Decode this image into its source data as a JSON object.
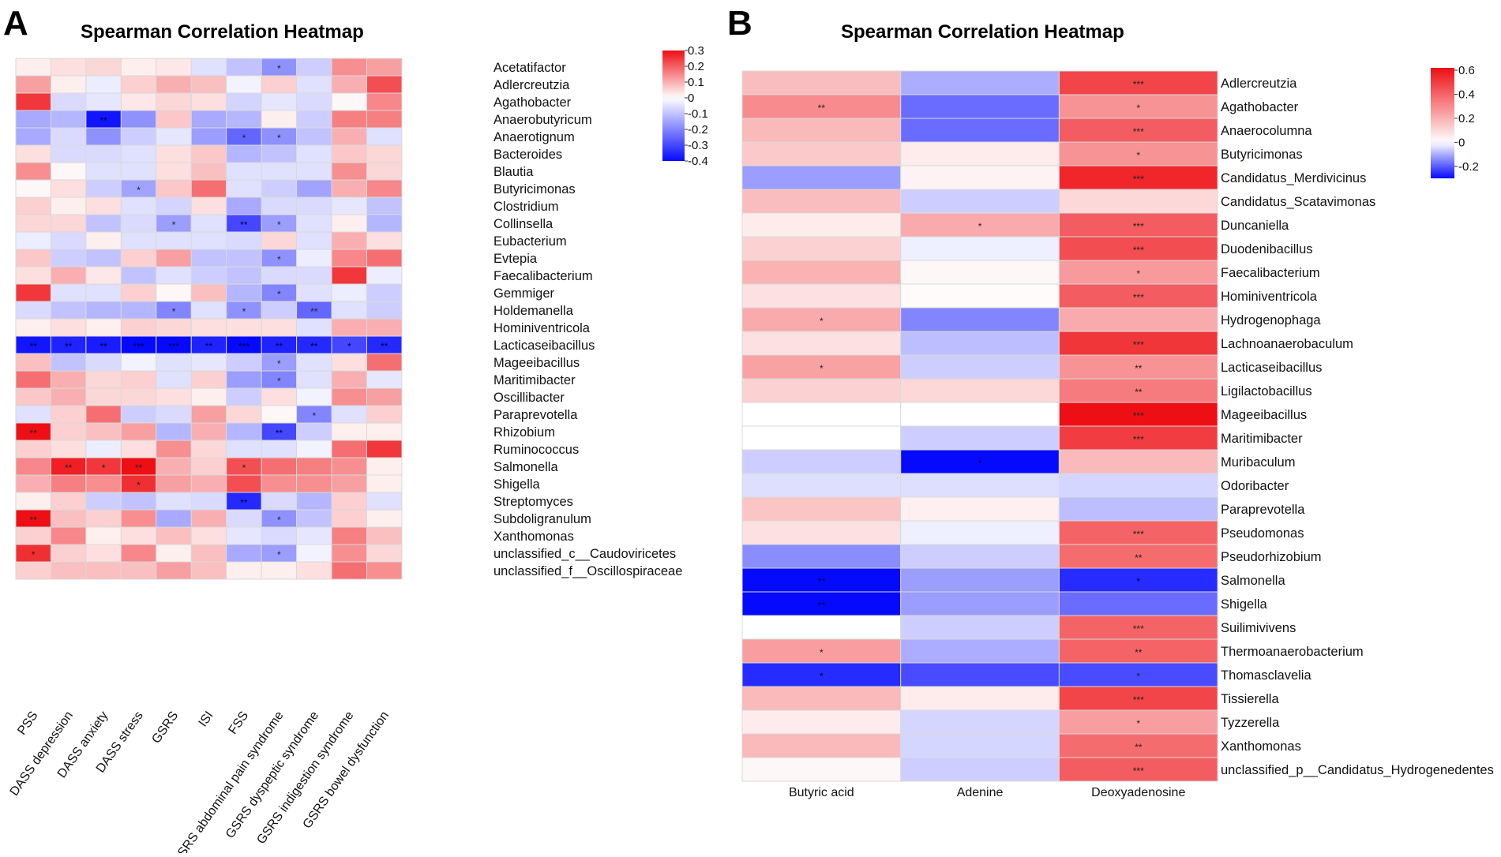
{
  "panels": [
    {
      "label": "A",
      "title": "Spearman Correlation Heatmap",
      "columns": [
        "PSS",
        "DASS depression",
        "DASS anxiety",
        "DASS stress",
        "GSRS",
        "ISI",
        "FSS",
        "GSRS abdominal pain syndrome",
        "GSRS dyspeptic syndrome",
        "GSRS indigestion syndrome",
        "GSRS bowel dysfunction"
      ],
      "rows": [
        "Acetatifactor",
        "Adlercreutzia",
        "Agathobacter",
        "Anaerobutyricum",
        "Anaerotignum",
        "Bacteroides",
        "Blautia",
        "Butyricimonas",
        "Clostridium",
        "Collinsella",
        "Eubacterium",
        "Evtepia",
        "Faecalibacterium",
        "Gemmiger",
        "Holdemanella",
        "Hominiventricola",
        "Lacticaseibacillus",
        "Mageeibacillus",
        "Maritimibacter",
        "Oscillibacter",
        "Paraprevotella",
        "Rhizobium",
        "Ruminococcus",
        "Salmonella",
        "Shigella",
        "Streptomyces",
        "Subdoligranulum",
        "Xanthomonas",
        "unclassified_c__Caudoviricetes",
        "unclassified_f__Oscillospiraceae"
      ],
      "color_scale": {
        "min": -0.4,
        "max": 0.3,
        "ticks": [
          0.3,
          0.2,
          0.1,
          0,
          -0.1,
          -0.2,
          -0.3,
          -0.4
        ],
        "tick_labels": [
          "0.3",
          "0.2",
          "0.1",
          "0",
          "-0.1",
          "-0.2",
          "-0.3",
          "-0.4"
        ]
      },
      "values": [
        [
          0.02,
          0.04,
          0.05,
          0.02,
          0.03,
          -0.05,
          -0.1,
          -0.18,
          -0.08,
          0.14,
          0.12
        ],
        [
          0.12,
          0.02,
          -0.03,
          0.06,
          0.1,
          0.08,
          -0.02,
          0.06,
          -0.05,
          0.1,
          0.22
        ],
        [
          0.25,
          -0.06,
          -0.04,
          0.03,
          0.05,
          0.04,
          -0.07,
          -0.04,
          -0.06,
          0.01,
          0.15
        ],
        [
          -0.14,
          -0.12,
          -0.38,
          -0.18,
          0.07,
          -0.14,
          -0.12,
          0.02,
          -0.08,
          0.16,
          0.16
        ],
        [
          -0.14,
          -0.06,
          -0.18,
          -0.08,
          -0.04,
          -0.16,
          -0.25,
          -0.18,
          -0.1,
          0.1,
          -0.05
        ],
        [
          0.04,
          -0.06,
          -0.06,
          -0.05,
          0.04,
          0.07,
          -0.12,
          -0.1,
          -0.05,
          0.07,
          0.05
        ],
        [
          0.14,
          0.01,
          -0.05,
          -0.05,
          0.04,
          0.08,
          -0.05,
          -0.05,
          -0.05,
          0.14,
          0.05
        ],
        [
          0.01,
          0.04,
          -0.08,
          -0.15,
          0.07,
          0.18,
          -0.05,
          -0.08,
          -0.15,
          0.1,
          0.15
        ],
        [
          0.06,
          0.02,
          0.04,
          -0.05,
          -0.07,
          0.04,
          -0.14,
          -0.06,
          -0.06,
          -0.04,
          -0.1
        ],
        [
          0.05,
          0.05,
          -0.1,
          -0.06,
          -0.16,
          -0.05,
          -0.3,
          -0.16,
          -0.05,
          0.02,
          -0.12
        ],
        [
          -0.03,
          -0.06,
          0.02,
          -0.05,
          -0.05,
          -0.05,
          -0.06,
          0.05,
          -0.05,
          0.1,
          0.04
        ],
        [
          0.07,
          -0.08,
          -0.1,
          0.06,
          0.12,
          -0.1,
          -0.1,
          -0.18,
          -0.03,
          0.15,
          0.18
        ],
        [
          0.04,
          0.1,
          0.03,
          -0.1,
          -0.05,
          -0.08,
          -0.1,
          -0.06,
          -0.06,
          0.25,
          -0.03
        ],
        [
          0.25,
          -0.05,
          -0.05,
          0.06,
          0.01,
          0.08,
          -0.12,
          -0.2,
          -0.05,
          -0.03,
          -0.08
        ],
        [
          -0.06,
          -0.1,
          -0.12,
          -0.12,
          -0.2,
          -0.05,
          -0.18,
          -0.08,
          -0.25,
          -0.05,
          -0.08
        ],
        [
          0.02,
          0.04,
          0.02,
          0.06,
          0.05,
          0.04,
          0.04,
          0.04,
          -0.05,
          0.1,
          0.1
        ],
        [
          -0.38,
          -0.36,
          -0.37,
          -0.4,
          -0.4,
          -0.36,
          -0.4,
          -0.36,
          -0.35,
          -0.3,
          -0.35
        ],
        [
          0.08,
          -0.1,
          -0.06,
          -0.02,
          -0.05,
          -0.04,
          -0.08,
          -0.16,
          -0.05,
          0.04,
          0.18
        ],
        [
          0.18,
          0.1,
          0.05,
          0.06,
          -0.05,
          0.06,
          -0.16,
          -0.2,
          -0.05,
          0.1,
          -0.04
        ],
        [
          0.07,
          0.1,
          0.05,
          0.05,
          0.04,
          0.02,
          -0.08,
          0.04,
          -0.02,
          0.14,
          0.12
        ],
        [
          -0.05,
          0.06,
          0.18,
          -0.08,
          -0.06,
          0.12,
          0.05,
          0.01,
          -0.2,
          -0.05,
          0.06
        ],
        [
          0.32,
          0.06,
          0.08,
          0.12,
          -0.12,
          0.1,
          -0.12,
          -0.3,
          -0.08,
          0.02,
          0.02
        ],
        [
          0.06,
          0.04,
          -0.03,
          0.04,
          0.14,
          0.05,
          -0.05,
          -0.05,
          -0.02,
          0.18,
          0.25
        ],
        [
          0.15,
          0.28,
          0.25,
          0.3,
          0.1,
          0.06,
          0.22,
          0.18,
          0.16,
          0.14,
          0.02
        ],
        [
          0.1,
          0.16,
          0.14,
          0.26,
          0.12,
          0.1,
          0.22,
          0.14,
          0.14,
          0.12,
          0.02
        ],
        [
          0.02,
          0.06,
          -0.08,
          -0.1,
          -0.05,
          -0.06,
          -0.35,
          -0.06,
          -0.12,
          0.06,
          -0.05
        ],
        [
          0.3,
          0.08,
          0.06,
          0.14,
          -0.14,
          0.1,
          -0.06,
          -0.18,
          -0.1,
          0.06,
          0.02
        ],
        [
          0.06,
          0.15,
          0.02,
          0.04,
          0.08,
          0.04,
          -0.04,
          -0.06,
          -0.04,
          0.16,
          0.08
        ],
        [
          0.26,
          0.06,
          0.04,
          0.15,
          0.02,
          0.08,
          -0.14,
          -0.16,
          -0.02,
          0.14,
          0.05
        ],
        [
          0.06,
          0.08,
          0.08,
          0.08,
          0.12,
          0.08,
          0.02,
          0.02,
          0.04,
          0.18,
          0.14
        ]
      ],
      "stars": [
        [
          "",
          "",
          "",
          "",
          "",
          "",
          "",
          "*",
          "",
          "",
          ""
        ],
        [
          "",
          "",
          "",
          "",
          "",
          "",
          "",
          "",
          "",
          "",
          ""
        ],
        [
          "",
          "",
          "",
          "",
          "",
          "",
          "",
          "",
          "",
          "",
          ""
        ],
        [
          "",
          "",
          "**",
          "",
          "",
          "",
          "",
          "",
          "",
          "",
          ""
        ],
        [
          "",
          "",
          "",
          "",
          "",
          "",
          "*",
          "*",
          "",
          "",
          ""
        ],
        [
          "",
          "",
          "",
          "",
          "",
          "",
          "",
          "",
          "",
          "",
          ""
        ],
        [
          "",
          "",
          "",
          "",
          "",
          "",
          "",
          "",
          "",
          "",
          ""
        ],
        [
          "",
          "",
          "",
          "*",
          "",
          "",
          "",
          "",
          "",
          "",
          ""
        ],
        [
          "",
          "",
          "",
          "",
          "",
          "",
          "",
          "",
          "",
          "",
          ""
        ],
        [
          "",
          "",
          "",
          "",
          "*",
          "",
          "**",
          "*",
          "",
          "",
          ""
        ],
        [
          "",
          "",
          "",
          "",
          "",
          "",
          "",
          "",
          "",
          "",
          ""
        ],
        [
          "",
          "",
          "",
          "",
          "",
          "",
          "",
          "*",
          "",
          "",
          ""
        ],
        [
          "",
          "",
          "",
          "",
          "",
          "",
          "",
          "",
          "",
          "",
          ""
        ],
        [
          "",
          "",
          "",
          "",
          "",
          "",
          "",
          "*",
          "",
          "",
          ""
        ],
        [
          "",
          "",
          "",
          "",
          "*",
          "",
          "*",
          "",
          "**",
          "",
          ""
        ],
        [
          "",
          "",
          "",
          "",
          "",
          "",
          "",
          "",
          "",
          "",
          ""
        ],
        [
          "**",
          "**",
          "**",
          "***",
          "***",
          "**",
          "***",
          "**",
          "**",
          "*",
          "**"
        ],
        [
          "",
          "",
          "",
          "",
          "",
          "",
          "",
          "*",
          "",
          "",
          ""
        ],
        [
          "",
          "",
          "",
          "",
          "",
          "",
          "",
          "*",
          "",
          "",
          ""
        ],
        [
          "",
          "",
          "",
          "",
          "",
          "",
          "",
          "",
          "",
          "",
          ""
        ],
        [
          "",
          "",
          "",
          "",
          "",
          "",
          "",
          "",
          "*",
          "",
          ""
        ],
        [
          "**",
          "",
          "",
          "",
          "",
          "",
          "",
          "**",
          "",
          "",
          ""
        ],
        [
          "",
          "",
          "",
          "",
          "",
          "",
          "",
          "",
          "",
          "",
          ""
        ],
        [
          "",
          "**",
          "*",
          "**",
          "",
          "",
          "*",
          "",
          "",
          "",
          ""
        ],
        [
          "",
          "",
          "",
          "*",
          "",
          "",
          "",
          "",
          "",
          "",
          ""
        ],
        [
          "",
          "",
          "",
          "",
          "",
          "",
          "**",
          "",
          "",
          "",
          ""
        ],
        [
          "**",
          "",
          "",
          "",
          "",
          "",
          "",
          "*",
          "",
          "",
          ""
        ],
        [
          "",
          "",
          "",
          "",
          "",
          "",
          "",
          "",
          "",
          "",
          ""
        ],
        [
          "*",
          "",
          "",
          "",
          "",
          "",
          "",
          "*",
          "",
          "",
          ""
        ],
        [
          "",
          "",
          "",
          "",
          "",
          "",
          "",
          "",
          "",
          "",
          ""
        ]
      ]
    },
    {
      "label": "B",
      "title": "Spearman Correlation Heatmap",
      "columns": [
        "Butyric acid",
        "Adenine",
        "Deoxyadenosine"
      ],
      "rows": [
        "Adlercreutzia",
        "Agathobacter",
        "Anaerocolumna",
        "Butyricimonas",
        "Candidatus_Merdivicinus",
        "Candidatus_Scatavimonas",
        "Duncaniella",
        "Duodenibacillus",
        "Faecalibacterium",
        "Hominiventricola",
        "Hydrogenophaga",
        "Lachnoanaerobaculum",
        "Lacticaseibacillus",
        "Ligilactobacillus",
        "Mageeibacillus",
        "Maritimibacter",
        "Muribaculum",
        "Odoribacter",
        "Paraprevotella",
        "Pseudomonas",
        "Pseudorhizobium",
        "Salmonella",
        "Shigella",
        "Suilimivivens",
        "Thermoanaerobacterium",
        "Thomasclavelia",
        "Tissierella",
        "Tyzzerella",
        "Xanthomonas",
        "unclassified_p__Candidatus_Hydrogenedentes"
      ],
      "color_scale": {
        "min": -0.3,
        "max": 0.62,
        "ticks": [
          0.6,
          0.4,
          0.2,
          0,
          -0.2
        ],
        "tick_labels": [
          "0.6",
          "0.4",
          "0.2",
          "0",
          "-0.2"
        ]
      },
      "values": [
        [
          0.17,
          -0.1,
          0.48
        ],
        [
          0.3,
          -0.18,
          0.28
        ],
        [
          0.18,
          -0.18,
          0.42
        ],
        [
          0.14,
          0.05,
          0.28
        ],
        [
          -0.12,
          0.03,
          0.56
        ],
        [
          0.17,
          -0.06,
          0.1
        ],
        [
          0.05,
          0.22,
          0.42
        ],
        [
          0.12,
          -0.02,
          0.46
        ],
        [
          0.2,
          0.02,
          0.26
        ],
        [
          0.08,
          0.01,
          0.42
        ],
        [
          0.22,
          -0.15,
          0.22
        ],
        [
          0.08,
          -0.08,
          0.52
        ],
        [
          0.24,
          -0.06,
          0.28
        ],
        [
          0.12,
          0.1,
          0.34
        ],
        [
          0.0,
          0.0,
          0.62
        ],
        [
          0.0,
          -0.06,
          0.5
        ],
        [
          -0.06,
          -0.3,
          0.18
        ],
        [
          -0.04,
          -0.04,
          -0.05
        ],
        [
          0.15,
          0.04,
          -0.08
        ],
        [
          0.08,
          -0.02,
          0.4
        ],
        [
          -0.14,
          -0.06,
          0.38
        ],
        [
          -0.3,
          -0.12,
          -0.26
        ],
        [
          -0.3,
          -0.12,
          -0.18
        ],
        [
          0.0,
          -0.06,
          0.4
        ],
        [
          0.25,
          -0.1,
          0.4
        ],
        [
          -0.26,
          -0.22,
          -0.22
        ],
        [
          0.18,
          0.05,
          0.48
        ],
        [
          0.05,
          -0.05,
          0.25
        ],
        [
          0.18,
          -0.05,
          0.38
        ],
        [
          0.02,
          -0.06,
          0.42
        ]
      ],
      "stars": [
        [
          "",
          "",
          "***"
        ],
        [
          "**",
          "",
          "*"
        ],
        [
          "",
          "",
          "***"
        ],
        [
          "",
          "",
          "*"
        ],
        [
          "",
          "",
          "***"
        ],
        [
          "",
          "",
          ""
        ],
        [
          "",
          "*",
          "***"
        ],
        [
          "",
          "",
          "***"
        ],
        [
          "",
          "",
          "*"
        ],
        [
          "",
          "",
          "***"
        ],
        [
          "*",
          "",
          ""
        ],
        [
          "",
          "",
          "***"
        ],
        [
          "*",
          "",
          "**"
        ],
        [
          "",
          "",
          "**"
        ],
        [
          "",
          "",
          "***"
        ],
        [
          "",
          "",
          "***"
        ],
        [
          "",
          "*",
          ""
        ],
        [
          "",
          "",
          ""
        ],
        [
          "",
          "",
          ""
        ],
        [
          "",
          "",
          "***"
        ],
        [
          "",
          "",
          "**"
        ],
        [
          "**",
          "",
          "*"
        ],
        [
          "**",
          "",
          ""
        ],
        [
          "",
          "",
          "***"
        ],
        [
          "*",
          "",
          "**"
        ],
        [
          "*",
          "",
          "*"
        ],
        [
          "",
          "",
          "***"
        ],
        [
          "",
          "",
          "*"
        ],
        [
          "",
          "",
          "**"
        ],
        [
          "",
          "",
          "***"
        ]
      ]
    }
  ]
}
